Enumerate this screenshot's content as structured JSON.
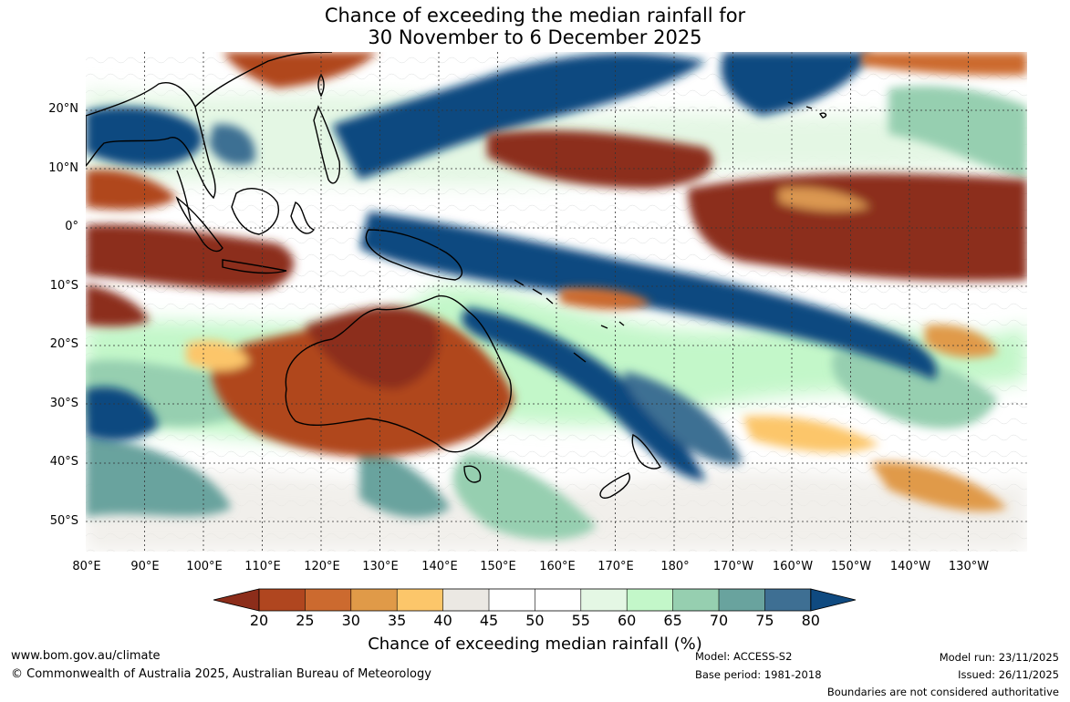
{
  "title": {
    "line1": "Chance of exceeding the median rainfall for",
    "line2": "30 November to 6 December 2025"
  },
  "map": {
    "latitude_labels": [
      "20°N",
      "10°N",
      "0°",
      "10°S",
      "20°S",
      "30°S",
      "40°S",
      "50°S"
    ],
    "longitude_labels": [
      "80°E",
      "90°E",
      "100°E",
      "110°E",
      "120°E",
      "130°E",
      "140°E",
      "150°E",
      "160°E",
      "170°E",
      "180°",
      "170°W",
      "160°W",
      "150°W",
      "140°W",
      "130°W"
    ],
    "extent_lon": [
      80,
      240
    ],
    "extent_lat": [
      -55,
      30
    ],
    "gridlines": "dotted"
  },
  "colorbar": {
    "ticks": [
      "20",
      "25",
      "30",
      "35",
      "40",
      "45",
      "50",
      "55",
      "60",
      "65",
      "70",
      "75",
      "80"
    ],
    "colors": [
      "#8c2d1a",
      "#b0461f",
      "#cc6a2f",
      "#e09a48",
      "#fcc66a",
      "#ebe8e3",
      "#ffffff",
      "#ffffff",
      "#e4f7e4",
      "#c3f7c9",
      "#96cfb0",
      "#69a39e",
      "#3e6f93",
      "#0f4a80"
    ],
    "label": "Chance of exceeding median rainfall (%)"
  },
  "footer": {
    "url": "www.bom.gov.au/climate",
    "copyright": "© Commonwealth of Australia 2025, Australian Bureau of Meteorology",
    "model": "Model: ACCESS-S2",
    "base_period": "Base period: 1981-2018",
    "model_run": "Model run: 23/11/2025",
    "issued": "Issued: 26/11/2025",
    "disclaimer": "Boundaries are not considered authoritative"
  }
}
